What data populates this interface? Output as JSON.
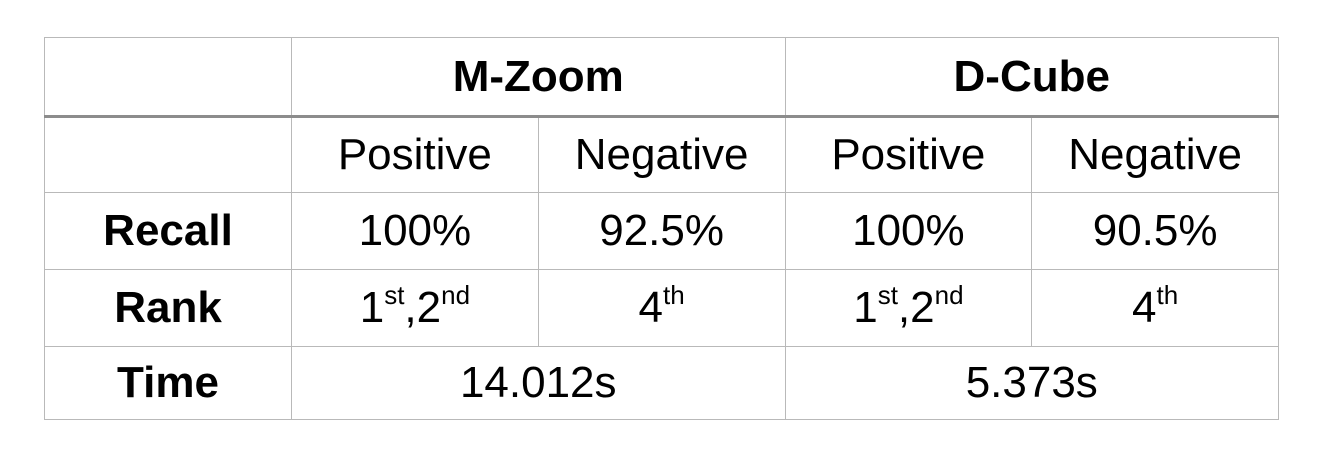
{
  "table": {
    "methods": [
      "M-Zoom",
      "D-Cube"
    ],
    "sub_headers": [
      "Positive",
      "Negative",
      "Positive",
      "Negative"
    ],
    "recall": {
      "label": "Recall",
      "values": [
        "100%",
        "92.5%",
        "100%",
        "90.5%"
      ]
    },
    "rank": {
      "label": "Rank",
      "cells": [
        [
          {
            "base": "1",
            "sup": "st"
          },
          {
            "base": ",2",
            "sup": "nd"
          }
        ],
        [
          {
            "base": "4",
            "sup": "th"
          }
        ],
        [
          {
            "base": "1",
            "sup": "st"
          },
          {
            "base": ",2",
            "sup": "nd"
          }
        ],
        [
          {
            "base": "4",
            "sup": "th"
          }
        ]
      ]
    },
    "time": {
      "label": "Time",
      "values": [
        "14.012s",
        "5.373s"
      ]
    }
  }
}
